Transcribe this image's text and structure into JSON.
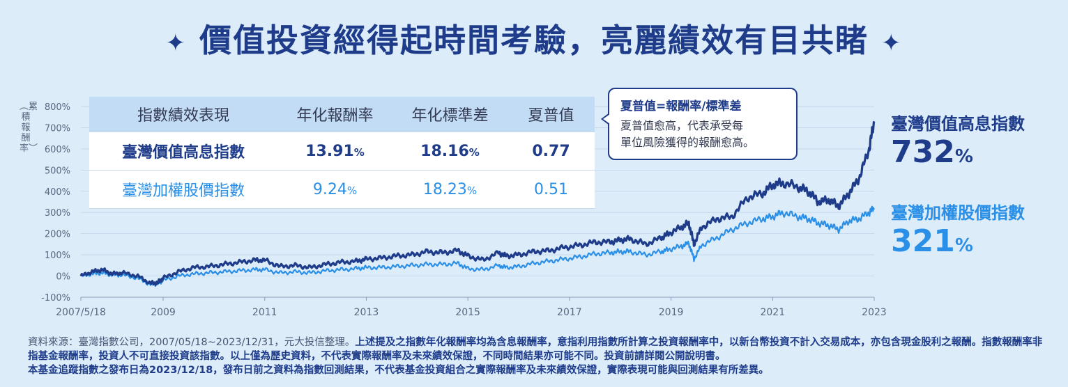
{
  "title": "價值投資經得起時間考驗，亮麗績效有目共睹",
  "title_star": "✦",
  "y_axis_title": "︵累積報酬率︶",
  "table": {
    "headers": [
      "指數績效表現",
      "年化報酬率",
      "年化標準差",
      "夏普值"
    ],
    "rows": [
      {
        "name": "臺灣價值高息指數",
        "return": "13.91",
        "std": "18.16",
        "sharpe": "0.77"
      },
      {
        "name": "臺灣加權股價指數",
        "return": "9.24",
        "std": "18.23",
        "sharpe": "0.51"
      }
    ],
    "pct_unit": "%"
  },
  "tooltip": {
    "title": "夏普值=報酬率/標準差",
    "line1": "夏普值愈高，代表承受每",
    "line2": "單位風險獲得的報酬愈高。"
  },
  "legend": {
    "s1_name": "臺灣價值高息指數",
    "s1_value": "732",
    "s1_unit": "%",
    "s2_name": "臺灣加權股價指數",
    "s2_value": "321",
    "s2_unit": "%"
  },
  "footnote": {
    "plain1": "資料來源：臺灣指數公司，2007/05/18~2023/12/31，元大投信整理。",
    "bold1": "上述提及之指數年化報酬率均為含息報酬率，意指利用指數所計算之投資報酬率中，以新台幣投資不計入交易成本，亦包含現金股利之報酬。指數報酬率非指基金報酬率，投資人不可直接投資該指數。以上僅為歷史資料，不代表實際報酬率及未來績效保證，不同時間結果亦可能不同。投資前請詳閱公開說明書。",
    "bold2": "本基金追蹤指數之發布日為2023/12/18，發布日前之資料為指數回測結果，不代表基金投資組合之實際報酬率及未來績效保證，實際表現可能與回測結果有所差異。"
  },
  "colors": {
    "dark": "#1e3c8a",
    "light": "#2a8fe6",
    "bg": "#dcecf9"
  },
  "chart_data": {
    "type": "line",
    "ylabel": "累積報酬率",
    "ylim": [
      -100,
      800
    ],
    "yticks": [
      "-100%",
      "0%",
      "100%",
      "200%",
      "300%",
      "400%",
      "500%",
      "600%",
      "700%",
      "800%"
    ],
    "ytick_values": [
      -100,
      0,
      100,
      200,
      300,
      400,
      500,
      600,
      700,
      800
    ],
    "xlim": [
      2007.38,
      2023.0
    ],
    "xticks": [
      {
        "label": "2007/5/18",
        "x": 2007.38
      },
      {
        "label": "2009",
        "x": 2009
      },
      {
        "label": "2011",
        "x": 2011
      },
      {
        "label": "2013",
        "x": 2013
      },
      {
        "label": "2015",
        "x": 2015
      },
      {
        "label": "2017",
        "x": 2017
      },
      {
        "label": "2019",
        "x": 2019
      },
      {
        "label": "2021",
        "x": 2021
      },
      {
        "label": "2023",
        "x": 2023
      }
    ],
    "series": [
      {
        "name": "臺灣價值高息指數",
        "color": "#1e3c8a",
        "x": [
          2007.38,
          2007.6,
          2007.8,
          2008.0,
          2008.2,
          2008.5,
          2008.75,
          2008.9,
          2009.0,
          2009.3,
          2009.6,
          2009.9,
          2010.2,
          2010.5,
          2010.8,
          2011.0,
          2011.3,
          2011.6,
          2011.9,
          2012.2,
          2012.5,
          2012.8,
          2013.0,
          2013.3,
          2013.6,
          2013.9,
          2014.2,
          2014.5,
          2014.8,
          2015.0,
          2015.3,
          2015.6,
          2015.75,
          2016.0,
          2016.3,
          2016.6,
          2016.9,
          2017.2,
          2017.5,
          2017.8,
          2018.0,
          2018.2,
          2018.5,
          2018.8,
          2018.95,
          2019.2,
          2019.35,
          2019.45,
          2019.6,
          2019.9,
          2020.2,
          2020.5,
          2020.8,
          2021.0,
          2021.2,
          2021.5,
          2021.7,
          2021.9,
          2022.1,
          2022.3,
          2022.5,
          2022.7,
          2022.9,
          2023.0
        ],
        "y": [
          0,
          20,
          30,
          10,
          15,
          0,
          -35,
          -30,
          -10,
          20,
          40,
          45,
          55,
          65,
          75,
          75,
          45,
          50,
          40,
          55,
          65,
          70,
          80,
          85,
          95,
          100,
          115,
          110,
          120,
          95,
          75,
          110,
          95,
          100,
          115,
          120,
          135,
          145,
          160,
          160,
          170,
          175,
          150,
          180,
          200,
          230,
          250,
          150,
          230,
          270,
          280,
          370,
          390,
          430,
          440,
          420,
          400,
          350,
          360,
          330,
          390,
          460,
          600,
          730
        ]
      },
      {
        "name": "臺灣加權股價指數",
        "color": "#2a8fe6",
        "x": [
          2007.38,
          2007.6,
          2007.8,
          2008.0,
          2008.2,
          2008.5,
          2008.75,
          2008.9,
          2009.0,
          2009.3,
          2009.6,
          2009.9,
          2010.2,
          2010.5,
          2010.8,
          2011.0,
          2011.3,
          2011.6,
          2011.9,
          2012.2,
          2012.5,
          2012.8,
          2013.0,
          2013.3,
          2013.6,
          2013.9,
          2014.2,
          2014.5,
          2014.8,
          2015.0,
          2015.3,
          2015.6,
          2015.75,
          2016.0,
          2016.3,
          2016.6,
          2016.9,
          2017.2,
          2017.5,
          2017.8,
          2018.0,
          2018.2,
          2018.5,
          2018.8,
          2018.95,
          2019.2,
          2019.35,
          2019.45,
          2019.6,
          2019.9,
          2020.2,
          2020.5,
          2020.8,
          2021.0,
          2021.2,
          2021.5,
          2021.7,
          2021.9,
          2022.1,
          2022.3,
          2022.5,
          2022.7,
          2022.9,
          2023.0
        ],
        "y": [
          0,
          10,
          15,
          5,
          5,
          -10,
          -40,
          -35,
          -20,
          0,
          10,
          15,
          20,
          25,
          30,
          30,
          15,
          20,
          15,
          25,
          30,
          35,
          40,
          40,
          45,
          50,
          55,
          55,
          60,
          35,
          30,
          50,
          40,
          45,
          60,
          70,
          80,
          90,
          105,
          110,
          115,
          115,
          100,
          115,
          125,
          140,
          155,
          80,
          145,
          180,
          220,
          250,
          270,
          280,
          300,
          280,
          270,
          250,
          240,
          220,
          260,
          270,
          300,
          320
        ]
      }
    ]
  }
}
